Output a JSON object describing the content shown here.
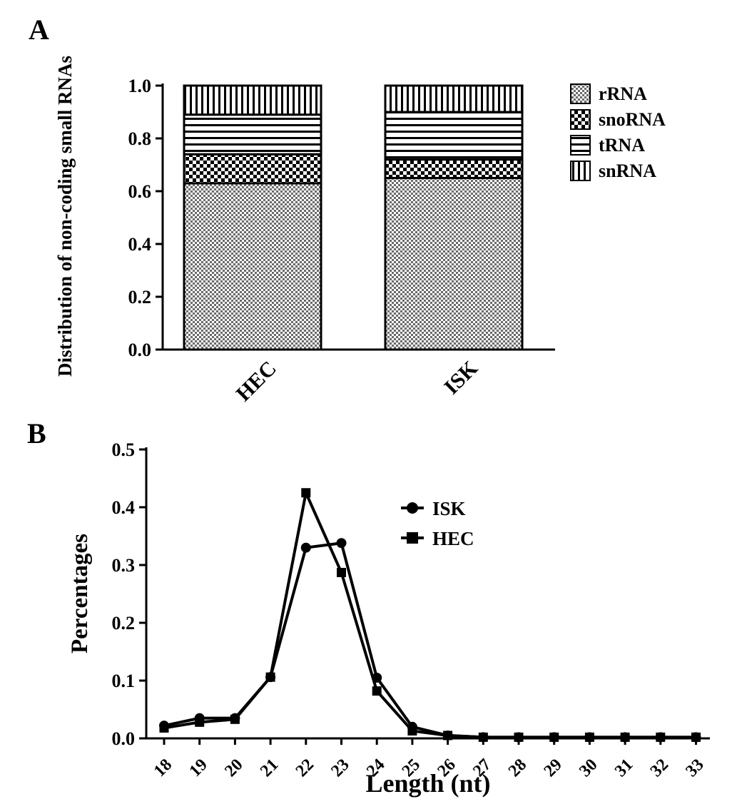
{
  "panels": {
    "a_label": "A",
    "b_label": "B"
  },
  "colors": {
    "ink": "#000000",
    "background": "#ffffff"
  },
  "chart_data": [
    {
      "type": "bar",
      "subtype": "stacked",
      "panel": "A",
      "title": "",
      "xlabel": "",
      "ylabel": "Distribution of non-coding small RNAs",
      "categories": [
        "HEC",
        "ISK"
      ],
      "series": [
        {
          "name": "rRNA",
          "pattern": "checker-fine",
          "values": [
            0.63,
            0.65
          ]
        },
        {
          "name": "snoRNA",
          "pattern": "checker-coarse",
          "values": [
            0.11,
            0.07
          ]
        },
        {
          "name": "tRNA",
          "pattern": "hlines",
          "values": [
            0.15,
            0.18
          ]
        },
        {
          "name": "snRNA",
          "pattern": "vlines",
          "values": [
            0.11,
            0.1
          ]
        }
      ],
      "ylim": [
        0,
        1.0
      ],
      "yticks": [
        0.0,
        0.2,
        0.4,
        0.6,
        0.8,
        1.0
      ],
      "legend": [
        "rRNA",
        "snoRNA",
        "tRNA",
        "snRNA"
      ],
      "legend_position": "right",
      "grid": false
    },
    {
      "type": "line",
      "panel": "B",
      "title": "",
      "xlabel": "Length (nt)",
      "ylabel": "Percentages",
      "x": [
        18,
        19,
        20,
        21,
        22,
        23,
        24,
        25,
        26,
        27,
        28,
        29,
        30,
        31,
        32,
        33
      ],
      "series": [
        {
          "name": "ISK",
          "marker": "circle",
          "values": [
            0.022,
            0.035,
            0.035,
            0.106,
            0.33,
            0.338,
            0.105,
            0.02,
            0.005,
            0.002,
            0.002,
            0.002,
            0.002,
            0.002,
            0.002,
            0.002
          ]
        },
        {
          "name": "HEC",
          "marker": "square",
          "values": [
            0.018,
            0.028,
            0.033,
            0.106,
            0.425,
            0.287,
            0.082,
            0.013,
            0.005,
            0.002,
            0.002,
            0.002,
            0.002,
            0.002,
            0.002,
            0.002
          ]
        }
      ],
      "ylim": [
        0,
        0.5
      ],
      "yticks": [
        0.0,
        0.1,
        0.2,
        0.3,
        0.4,
        0.5
      ],
      "legend": [
        "ISK",
        "HEC"
      ],
      "legend_position": "inside-right",
      "grid": false
    }
  ]
}
